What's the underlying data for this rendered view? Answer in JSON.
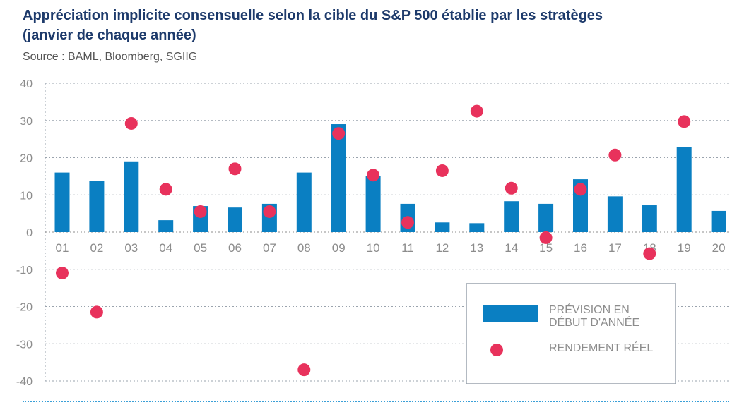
{
  "header": {
    "title_line1": "Appréciation implicite consensuelle selon la cible du S&P 500 établie par les stratèges",
    "title_line2": "(janvier de chaque année)",
    "source": "Source : BAML, Bloomberg, SGIIG"
  },
  "chart_data": {
    "type": "bar",
    "categories": [
      "01",
      "02",
      "03",
      "04",
      "05",
      "06",
      "07",
      "08",
      "09",
      "10",
      "11",
      "12",
      "13",
      "14",
      "15",
      "16",
      "17",
      "18",
      "19",
      "20"
    ],
    "series": [
      {
        "name": "PRÉVISION EN DÉBUT D'ANNÉE",
        "type": "bar",
        "color": "#0a7fc2",
        "values": [
          16,
          13.8,
          19,
          3.2,
          7,
          6.6,
          7.6,
          16,
          29,
          15,
          7.6,
          2.6,
          2.4,
          8.3,
          7.6,
          14.2,
          9.6,
          7.2,
          22.8,
          5.7
        ]
      },
      {
        "name": "RENDEMENT RÉEL",
        "type": "scatter",
        "color": "#e8325c",
        "values": [
          -11,
          -21.5,
          29.2,
          11.5,
          5.5,
          17,
          5.5,
          -37,
          26.5,
          15.3,
          2.6,
          16.5,
          32.5,
          11.8,
          -1.5,
          11.5,
          20.7,
          -5.8,
          29.7,
          null
        ]
      }
    ],
    "yticks": [
      40,
      30,
      20,
      10,
      0,
      -10,
      -20,
      -30,
      -40
    ],
    "ylim": [
      -40,
      40
    ],
    "grid": true,
    "legend_position": "bottom-right",
    "xlabel": "",
    "ylabel": ""
  }
}
